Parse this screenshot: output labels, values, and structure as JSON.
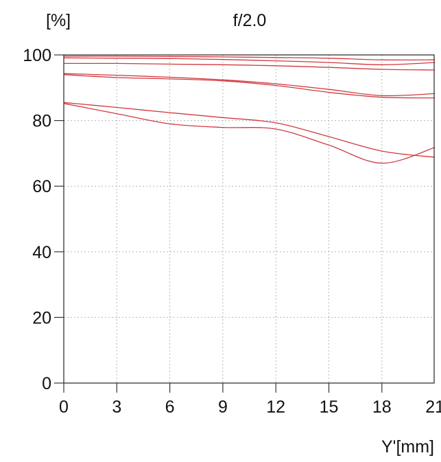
{
  "chart_data": {
    "type": "line",
    "title": "f/2.0",
    "ylabel": "[%]",
    "xlabel": "Y'[mm]",
    "xlim": [
      0,
      21
    ],
    "ylim": [
      0,
      100
    ],
    "x_ticks": [
      0,
      3,
      6,
      9,
      12,
      15,
      18,
      21
    ],
    "x_tick_labels": [
      "0",
      "3",
      "6",
      "9",
      "12",
      "15",
      "18",
      "21"
    ],
    "y_ticks": [
      0,
      20,
      40,
      60,
      80,
      100
    ],
    "y_tick_labels": [
      "0",
      "20",
      "40",
      "60",
      "80",
      "100"
    ],
    "grid": true,
    "legend": "none",
    "line_color": "#d0393e",
    "series": [
      {
        "x": [
          0,
          3,
          6,
          9,
          12,
          15,
          18,
          21
        ],
        "y": [
          99.6,
          99.6,
          99.5,
          99.4,
          99.2,
          99.0,
          98.5,
          98.5
        ]
      },
      {
        "x": [
          0,
          3,
          6,
          9,
          12,
          15,
          18,
          21
        ],
        "y": [
          99.1,
          99.0,
          98.9,
          98.6,
          98.2,
          97.7,
          97.0,
          97.7
        ]
      },
      {
        "x": [
          0,
          3,
          6,
          9,
          12,
          15,
          18,
          21
        ],
        "y": [
          97.4,
          97.4,
          97.2,
          97.0,
          96.7,
          96.2,
          95.6,
          95.4
        ]
      },
      {
        "x": [
          0,
          3,
          6,
          9,
          12,
          15,
          18,
          21
        ],
        "y": [
          94.3,
          93.8,
          93.2,
          92.4,
          91.2,
          89.5,
          87.6,
          88.2
        ]
      },
      {
        "x": [
          0,
          3,
          6,
          9,
          12,
          15,
          18,
          21
        ],
        "y": [
          94.0,
          93.1,
          92.7,
          92.1,
          90.7,
          88.6,
          87.1,
          86.9
        ]
      },
      {
        "x": [
          0,
          3,
          6,
          9,
          12,
          15,
          18,
          21
        ],
        "y": [
          85.5,
          84.0,
          82.4,
          80.9,
          79.3,
          75.1,
          70.7,
          68.8
        ]
      },
      {
        "x": [
          0,
          3,
          6,
          9,
          12,
          15,
          18,
          21
        ],
        "y": [
          85.2,
          82.1,
          79.0,
          77.9,
          77.4,
          72.5,
          67.0,
          71.8
        ]
      }
    ]
  }
}
